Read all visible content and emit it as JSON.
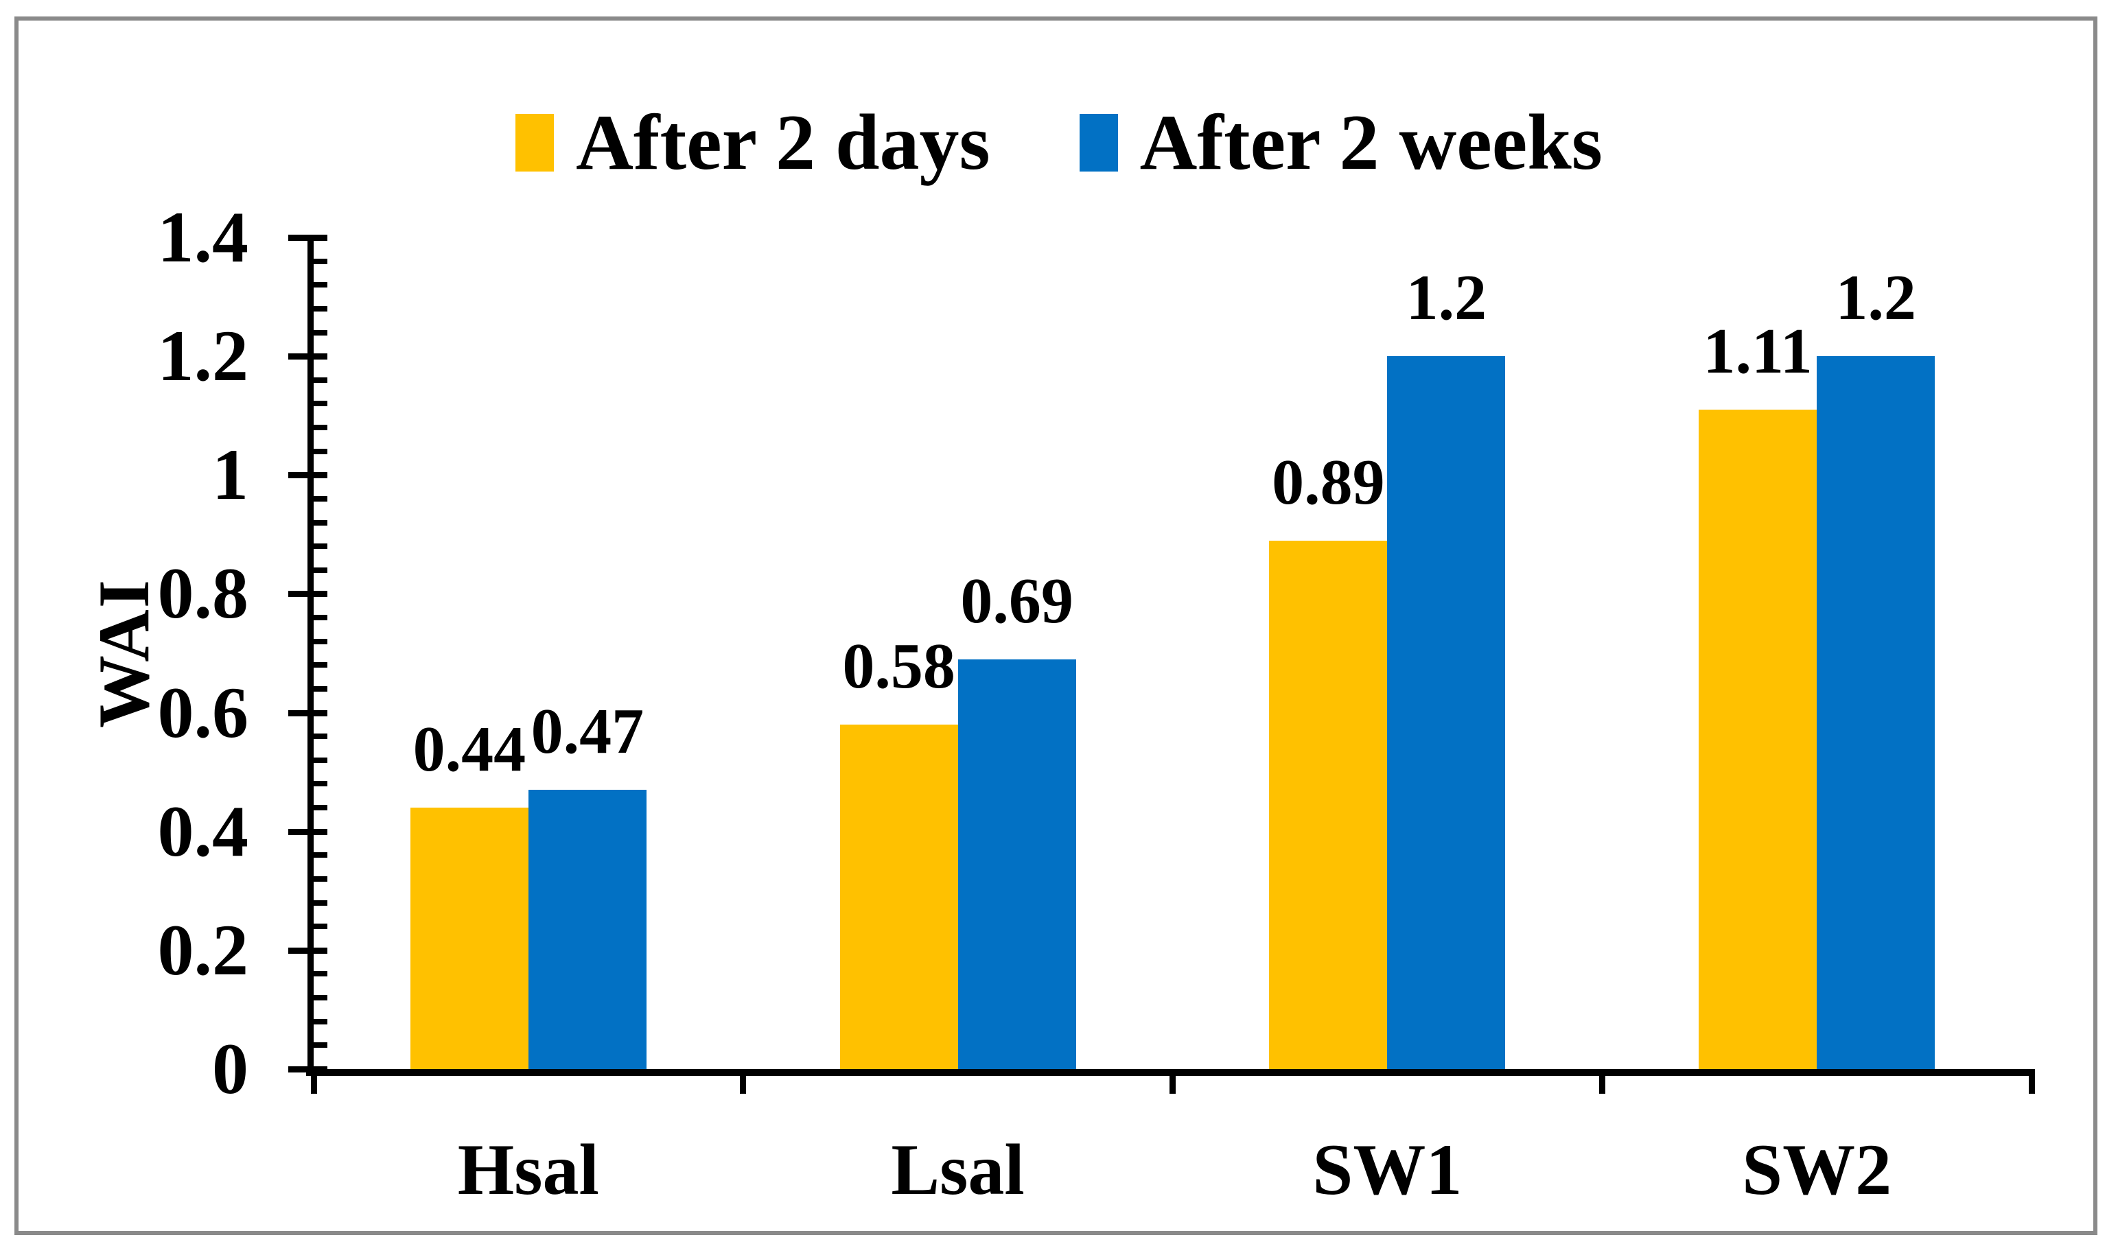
{
  "figure": {
    "background_color": "#ffffff",
    "border_color": "#8a8a8a",
    "axis_color": "#000000"
  },
  "chart_data": {
    "type": "bar",
    "title": "",
    "categories": [
      "Hsal",
      "Lsal",
      "SW1",
      "SW2"
    ],
    "series": [
      {
        "name": "After 2 days",
        "color": "#FFC100",
        "values": [
          0.44,
          0.58,
          0.89,
          1.11
        ],
        "value_labels": [
          "0.44",
          "0.58",
          "0.89",
          "1.11"
        ]
      },
      {
        "name": "After 2 weeks",
        "color": "#0271C4",
        "values": [
          0.47,
          0.69,
          1.2,
          1.2
        ],
        "value_labels": [
          "0.47",
          "0.69",
          "1.2",
          "1.2"
        ]
      }
    ],
    "xlabel": "",
    "ylabel": "WAI",
    "ylim": [
      0,
      1.4
    ],
    "y_major_ticks": [
      0,
      0.2,
      0.4,
      0.6,
      0.8,
      1,
      1.2,
      1.4
    ],
    "y_tick_labels": [
      "0",
      "0.2",
      "0.4",
      "0.6",
      "0.8",
      "1",
      "1.2",
      "1.4"
    ],
    "y_minor_unit": 0.04,
    "grid": false,
    "legend_position": "top-center",
    "data_labels_shown": true
  }
}
